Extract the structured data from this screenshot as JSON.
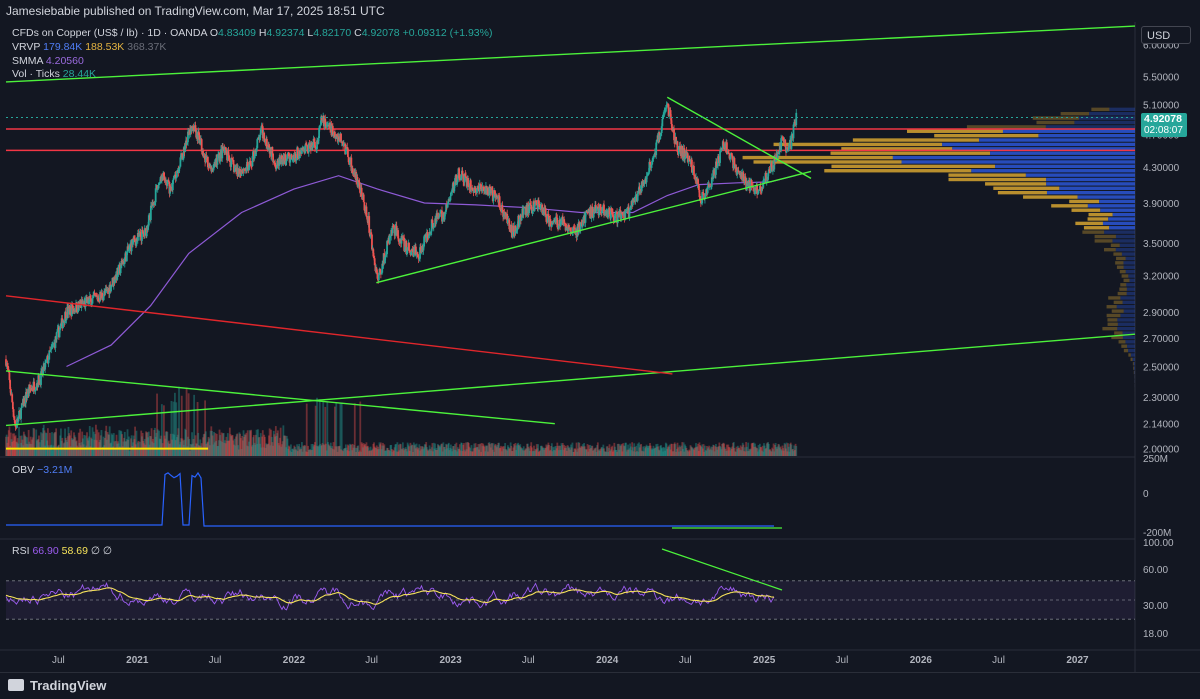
{
  "publisher": "Jamesiebabie published on TradingView.com, Mar 17, 2025 18:51 UTC",
  "brand": "TradingView",
  "currency_button": "USD",
  "legend": {
    "symbol": "CFDs on Copper (US$ / lb) · 1D · OANDA",
    "o_label": "O",
    "o": "4.83409",
    "h_label": "H",
    "h": "4.92374",
    "l_label": "L",
    "l": "4.82170",
    "c_label": "C",
    "c": "4.92078",
    "change": "+0.09312 (+1.93%)",
    "vrvp_label": "VRVP",
    "vrvp_1": "179.84K",
    "vrvp_2": "188.53K",
    "vrvp_3": "368.37K",
    "smma_label": "SMMA",
    "smma": "4.20560",
    "vol_label": "Vol · Ticks",
    "vol": "28.44K",
    "obv_label": "OBV",
    "obv": "−3.21M",
    "rsi_label": "RSI",
    "rsi_1": "66.90",
    "rsi_2": "58.69",
    "rsi_3": "∅",
    "rsi_4": "∅"
  },
  "last_price_tag": {
    "price": "4.92078",
    "countdown": "02:08:07"
  },
  "colors": {
    "background": "#131722",
    "up": "#26a69a",
    "down": "#ef5350",
    "smma": "#8e5ad6",
    "trendline": "#4cf23b",
    "horizontal": "#f23645",
    "red_trend": "#e0262b",
    "yellow_line": "#ffe600",
    "vrvp_up": "#d7a430",
    "vrvp_down": "#2b56d6",
    "obv": "#2962ff",
    "rsi": "#9c5cf0",
    "rsi_ma": "#f6e35a"
  },
  "chart_data": [
    {
      "type": "candlestick",
      "title": "CFDs on Copper (US$ / lb) · 1D · OANDA",
      "x_ticks": [
        "Jul",
        "2021",
        "Jul",
        "2022",
        "Jul",
        "2023",
        "Jul",
        "2024",
        "Jul",
        "2025",
        "Jul",
        "2026",
        "Jul",
        "2027"
      ],
      "x_tick_dates": [
        "2020-07-01",
        "2021-01-01",
        "2021-07-01",
        "2022-01-01",
        "2022-07-01",
        "2023-01-01",
        "2023-07-01",
        "2024-01-01",
        "2024-07-01",
        "2025-01-01",
        "2025-07-01",
        "2026-01-01",
        "2026-07-01",
        "2027-01-01"
      ],
      "y_scale": "log",
      "y_ticks": [
        6.0,
        5.5,
        5.1,
        4.7,
        4.3,
        3.9,
        3.5,
        3.2,
        2.9,
        2.7,
        2.5,
        2.3,
        2.14,
        2.0
      ],
      "y_tick_labels": [
        "6.00000",
        "5.50000",
        "5.10000",
        "4.70000",
        "4.30000",
        "3.90000",
        "3.50000",
        "3.20000",
        "2.90000",
        "2.70000",
        "2.50000",
        "2.30000",
        "2.14000",
        "2.00000"
      ],
      "xlim": [
        "2020-03-01",
        "2027-05-15"
      ],
      "ylim": [
        1.96,
        6.38
      ],
      "price_path": [
        [
          "2020-03-01",
          2.55
        ],
        [
          "2020-03-23",
          2.12
        ],
        [
          "2020-04-20",
          2.33
        ],
        [
          "2020-05-20",
          2.42
        ],
        [
          "2020-06-20",
          2.65
        ],
        [
          "2020-07-20",
          2.9
        ],
        [
          "2020-08-20",
          2.95
        ],
        [
          "2020-09-20",
          3.0
        ],
        [
          "2020-10-20",
          3.05
        ],
        [
          "2020-11-20",
          3.25
        ],
        [
          "2020-12-20",
          3.5
        ],
        [
          "2021-01-20",
          3.6
        ],
        [
          "2021-02-25",
          4.2
        ],
        [
          "2021-03-20",
          4.05
        ],
        [
          "2021-04-20",
          4.5
        ],
        [
          "2021-05-10",
          4.85
        ],
        [
          "2021-06-20",
          4.25
        ],
        [
          "2021-07-20",
          4.5
        ],
        [
          "2021-08-20",
          4.25
        ],
        [
          "2021-09-20",
          4.3
        ],
        [
          "2021-10-18",
          4.75
        ],
        [
          "2021-11-20",
          4.35
        ],
        [
          "2021-12-20",
          4.4
        ],
        [
          "2022-01-20",
          4.5
        ],
        [
          "2022-02-25",
          4.6
        ],
        [
          "2022-03-07",
          4.9
        ],
        [
          "2022-04-01",
          4.75
        ],
        [
          "2022-04-25",
          4.6
        ],
        [
          "2022-05-20",
          4.25
        ],
        [
          "2022-06-20",
          3.8
        ],
        [
          "2022-07-15",
          3.15
        ],
        [
          "2022-08-20",
          3.65
        ],
        [
          "2022-09-20",
          3.45
        ],
        [
          "2022-10-20",
          3.4
        ],
        [
          "2022-11-20",
          3.7
        ],
        [
          "2022-12-20",
          3.8
        ],
        [
          "2023-01-20",
          4.25
        ],
        [
          "2023-02-20",
          4.05
        ],
        [
          "2023-03-20",
          4.05
        ],
        [
          "2023-04-20",
          3.95
        ],
        [
          "2023-05-25",
          3.6
        ],
        [
          "2023-06-20",
          3.8
        ],
        [
          "2023-07-25",
          3.9
        ],
        [
          "2023-08-20",
          3.7
        ],
        [
          "2023-09-20",
          3.7
        ],
        [
          "2023-10-20",
          3.6
        ],
        [
          "2023-11-20",
          3.8
        ],
        [
          "2023-12-20",
          3.85
        ],
        [
          "2024-01-20",
          3.75
        ],
        [
          "2024-02-20",
          3.8
        ],
        [
          "2024-03-20",
          4.05
        ],
        [
          "2024-04-20",
          4.45
        ],
        [
          "2024-05-20",
          5.1
        ],
        [
          "2024-06-10",
          4.55
        ],
        [
          "2024-07-10",
          4.4
        ],
        [
          "2024-08-07",
          3.95
        ],
        [
          "2024-09-01",
          4.15
        ],
        [
          "2024-09-30",
          4.6
        ],
        [
          "2024-10-20",
          4.35
        ],
        [
          "2024-11-20",
          4.1
        ],
        [
          "2024-12-20",
          4.05
        ],
        [
          "2025-01-20",
          4.3
        ],
        [
          "2025-02-10",
          4.6
        ],
        [
          "2025-02-28",
          4.5
        ],
        [
          "2025-03-17",
          4.92
        ]
      ],
      "smma_path": [
        [
          "2020-07-20",
          2.5
        ],
        [
          "2020-11-01",
          2.65
        ],
        [
          "2021-02-01",
          2.95
        ],
        [
          "2021-05-01",
          3.4
        ],
        [
          "2021-09-01",
          3.8
        ],
        [
          "2022-01-01",
          4.05
        ],
        [
          "2022-04-15",
          4.2
        ],
        [
          "2022-07-15",
          4.05
        ],
        [
          "2022-11-01",
          3.9
        ],
        [
          "2023-03-01",
          3.88
        ],
        [
          "2023-07-01",
          3.85
        ],
        [
          "2023-11-01",
          3.8
        ],
        [
          "2024-03-01",
          3.8
        ],
        [
          "2024-05-20",
          3.98
        ],
        [
          "2024-08-01",
          4.1
        ],
        [
          "2024-11-01",
          4.12
        ],
        [
          "2025-01-15",
          4.13
        ],
        [
          "2025-03-17",
          4.2056
        ]
      ],
      "horizontal_lines": [
        4.77,
        4.5
      ],
      "trendlines": [
        {
          "color": "green",
          "from": [
            "2020-03-01",
            5.42
          ],
          "to": [
            "2027-05-15",
            6.31
          ]
        },
        {
          "color": "green",
          "from": [
            "2022-07-12",
            3.14
          ],
          "to": [
            "2025-04-20",
            4.25
          ]
        },
        {
          "color": "green",
          "from": [
            "2024-05-20",
            5.2
          ],
          "to": [
            "2025-04-20",
            4.17
          ]
        },
        {
          "color": "green",
          "from": [
            "2020-03-01",
            2.47
          ],
          "to": [
            "2023-09-01",
            2.14
          ]
        },
        {
          "color": "green",
          "from": [
            "2020-03-01",
            2.13
          ],
          "to": [
            "2027-05-15",
            2.73
          ]
        },
        {
          "color": "red",
          "from": [
            "2020-03-01",
            3.03
          ],
          "to": [
            "2024-06-01",
            2.45
          ]
        }
      ],
      "volume_profile_note": "VRVP histogram on right side, widest around 4.3–4.6",
      "last_price": 4.92078
    },
    {
      "type": "line",
      "title": "OBV",
      "y_tick_labels": [
        "250M",
        "0",
        "-200M"
      ],
      "value": "−3.21M"
    },
    {
      "type": "line",
      "title": "RSI",
      "y_tick_labels": [
        "100.00",
        "60.00",
        "30.00",
        "18.00"
      ],
      "bands": [
        70,
        50,
        30
      ],
      "rsi": 66.9,
      "rsi_ma": 58.69
    }
  ]
}
